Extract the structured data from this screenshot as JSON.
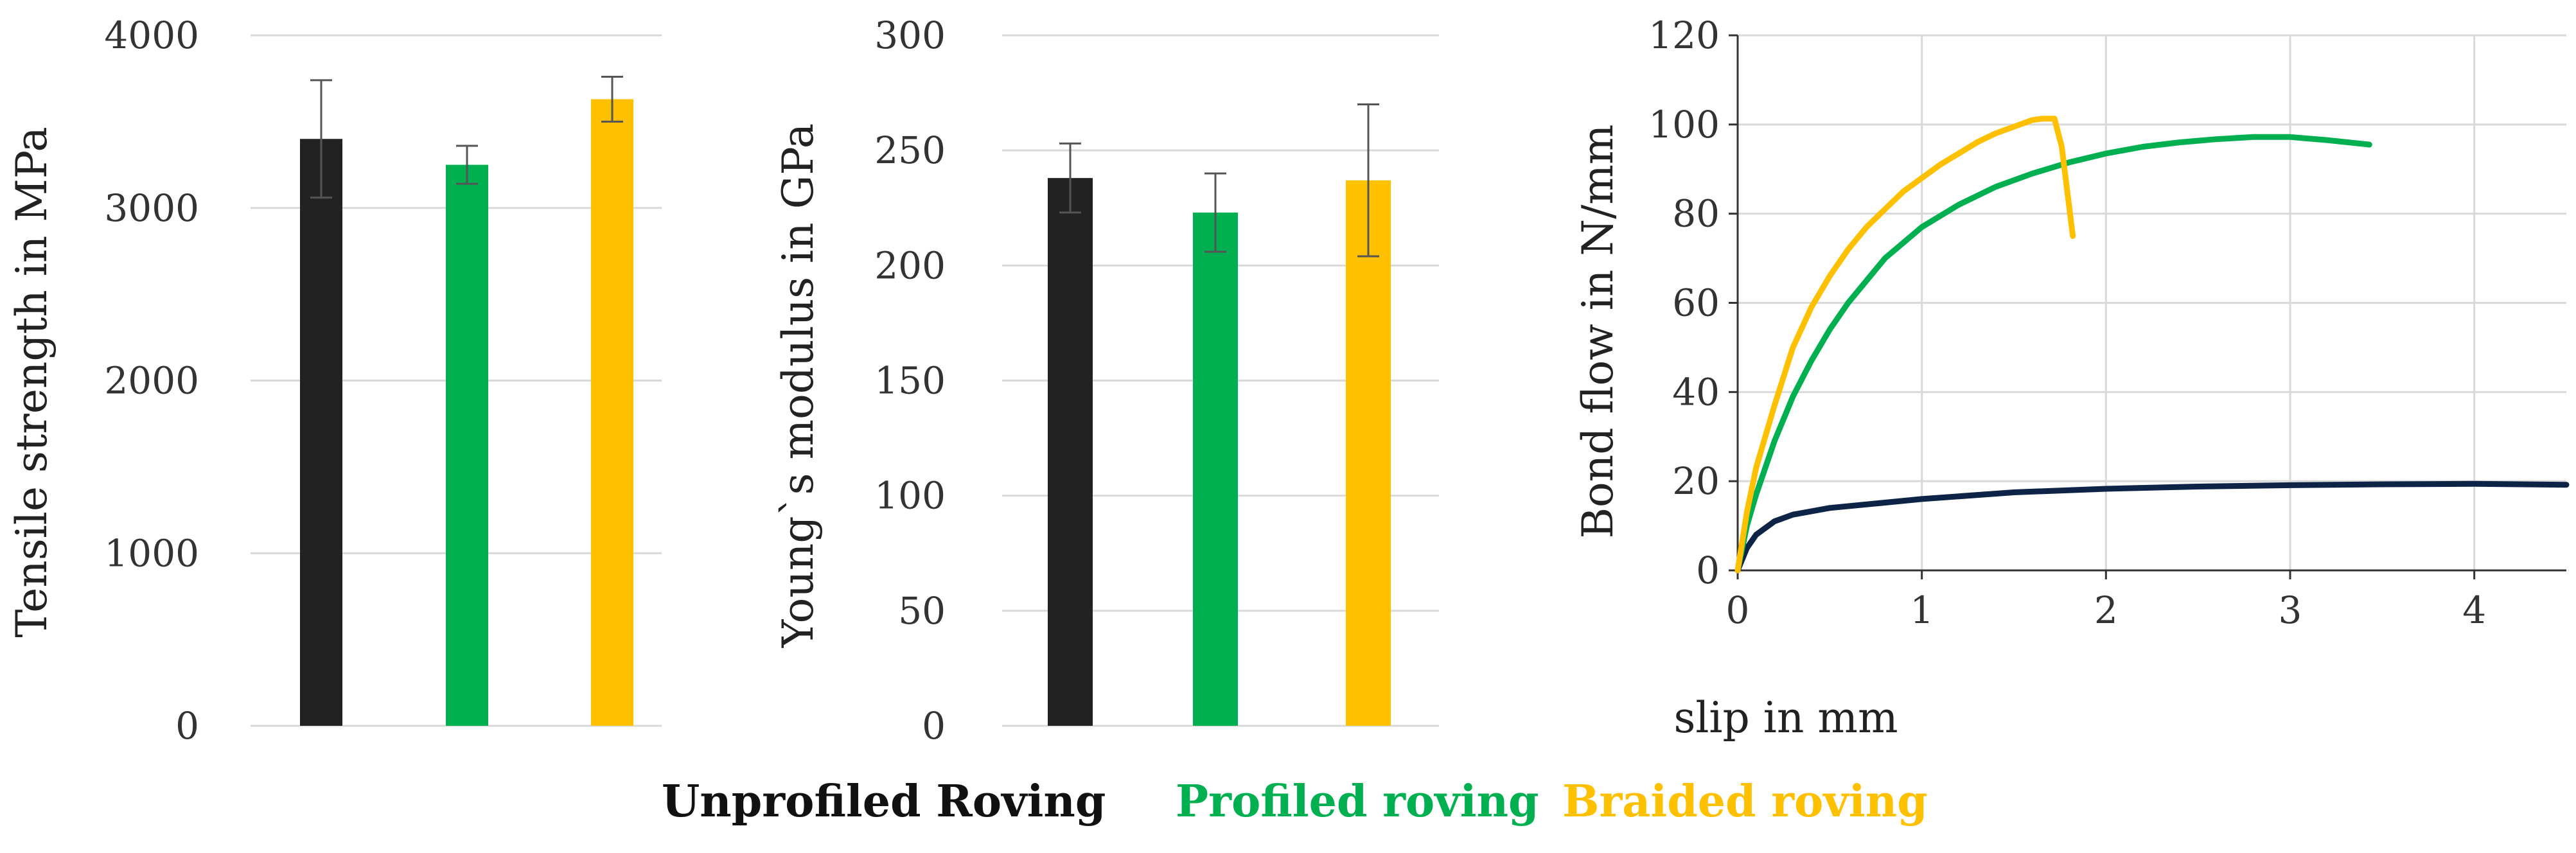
{
  "chart_data": [
    {
      "type": "bar",
      "categories": [
        "Unprofiled Roving",
        "Profiled roving",
        "Braided roving"
      ],
      "values": [
        3400,
        3250,
        3630
      ],
      "errors": [
        340,
        110,
        130
      ],
      "colors": [
        "#222222",
        "#00b050",
        "#ffc000"
      ],
      "ylabel": "Tensile strength in MPa",
      "ylim": [
        0,
        4000
      ],
      "yticks": [
        0,
        1000,
        2000,
        3000,
        4000
      ],
      "grid": true
    },
    {
      "type": "bar",
      "categories": [
        "Unprofiled Roving",
        "Profiled roving",
        "Braided roving"
      ],
      "values": [
        238,
        223,
        237
      ],
      "errors": [
        15,
        17,
        33
      ],
      "colors": [
        "#222222",
        "#00b050",
        "#ffc000"
      ],
      "ylabel": "Young`s modulus in GPa",
      "ylim": [
        0,
        300
      ],
      "yticks": [
        0,
        50,
        100,
        150,
        200,
        250,
        300
      ],
      "grid": true
    },
    {
      "type": "line",
      "xlabel": "slip in mm",
      "ylabel": "Bond flow in N/mm",
      "xlim": [
        0,
        4.5
      ],
      "ylim": [
        0,
        120
      ],
      "xticks": [
        0,
        1,
        2,
        3,
        4
      ],
      "yticks": [
        0,
        20,
        40,
        60,
        80,
        100,
        120
      ],
      "grid": true,
      "series": [
        {
          "color": "#0d2447",
          "x": [
            0,
            0.05,
            0.1,
            0.2,
            0.3,
            0.5,
            0.75,
            1.0,
            1.5,
            2.0,
            2.5,
            3.0,
            3.5,
            4.0,
            4.5
          ],
          "y": [
            0,
            5,
            8,
            11,
            12.5,
            14,
            15,
            16,
            17.5,
            18.3,
            18.8,
            19.1,
            19.3,
            19.4,
            19.2
          ]
        },
        {
          "color": "#00b050",
          "x": [
            0,
            0.05,
            0.1,
            0.2,
            0.3,
            0.4,
            0.5,
            0.6,
            0.8,
            1.0,
            1.2,
            1.4,
            1.6,
            1.8,
            2.0,
            2.2,
            2.4,
            2.6,
            2.8,
            3.0,
            3.2,
            3.43
          ],
          "y": [
            0,
            10,
            17,
            29,
            39,
            47,
            54,
            60,
            70,
            77,
            82,
            86,
            89,
            91.5,
            93.5,
            95,
            96,
            96.7,
            97.2,
            97.2,
            96.5,
            95.5
          ]
        },
        {
          "color": "#ffc000",
          "x": [
            0,
            0.05,
            0.1,
            0.2,
            0.3,
            0.4,
            0.5,
            0.6,
            0.7,
            0.8,
            0.9,
            1.0,
            1.1,
            1.2,
            1.3,
            1.4,
            1.5,
            1.6,
            1.65,
            1.72,
            1.76,
            1.79,
            1.82
          ],
          "y": [
            0,
            13,
            23,
            37,
            50,
            59,
            66,
            72,
            77,
            81,
            85,
            88,
            91,
            93.5,
            96,
            98,
            99.5,
            101,
            101.3,
            101.3,
            95,
            85,
            75
          ]
        }
      ]
    }
  ],
  "legend": [
    {
      "label": "Unprofiled Roving",
      "color": "#111111"
    },
    {
      "label": "Profiled roving",
      "color": "#00b050"
    },
    {
      "label": "Braided roving",
      "color": "#ffc000"
    }
  ]
}
